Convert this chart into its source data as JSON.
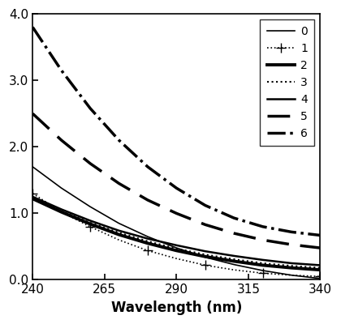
{
  "x": [
    240,
    250,
    260,
    270,
    280,
    290,
    300,
    310,
    320,
    330,
    340
  ],
  "curves": {
    "0": {
      "y": [
        1.7,
        1.38,
        1.1,
        0.85,
        0.65,
        0.48,
        0.34,
        0.23,
        0.14,
        0.07,
        0.02
      ],
      "lw": 1.2,
      "ls": "-",
      "marker": null,
      "label": "0"
    },
    "1": {
      "y": [
        1.3,
        1.02,
        0.8,
        0.6,
        0.44,
        0.32,
        0.22,
        0.15,
        0.1,
        0.07,
        0.05
      ],
      "lw": 1.2,
      "ls": ":",
      "marker": "+",
      "markersize": 8,
      "markevery": 2,
      "label": "1"
    },
    "2": {
      "y": [
        1.22,
        1.02,
        0.84,
        0.68,
        0.55,
        0.44,
        0.35,
        0.28,
        0.22,
        0.18,
        0.15
      ],
      "lw": 2.8,
      "ls": "-",
      "marker": null,
      "label": "2"
    },
    "3": {
      "y": [
        1.23,
        1.03,
        0.86,
        0.71,
        0.58,
        0.47,
        0.38,
        0.31,
        0.25,
        0.21,
        0.18
      ],
      "lw": 1.5,
      "ls": ":",
      "marker": null,
      "label": "3"
    },
    "4": {
      "y": [
        1.25,
        1.06,
        0.89,
        0.74,
        0.62,
        0.52,
        0.43,
        0.36,
        0.3,
        0.25,
        0.22
      ],
      "lw": 1.8,
      "ls": "-",
      "marker": null,
      "label": "4"
    },
    "5": {
      "y": [
        2.5,
        2.1,
        1.75,
        1.45,
        1.2,
        1.0,
        0.83,
        0.7,
        0.6,
        0.53,
        0.48
      ],
      "lw": 2.5,
      "ls": "--",
      "dashes": [
        8,
        4
      ],
      "marker": null,
      "label": "5"
    },
    "6": {
      "y": [
        3.8,
        3.15,
        2.58,
        2.1,
        1.7,
        1.38,
        1.12,
        0.93,
        0.8,
        0.72,
        0.67
      ],
      "lw": 2.5,
      "ls": "-.",
      "marker": null,
      "label": "6"
    }
  },
  "curve_order": [
    "0",
    "1",
    "2",
    "3",
    "4",
    "5",
    "6"
  ],
  "xlim": [
    240,
    340
  ],
  "ylim": [
    0.0,
    4.0
  ],
  "xticks": [
    240,
    265,
    290,
    315,
    340
  ],
  "yticks": [
    0.0,
    1.0,
    2.0,
    3.0,
    4.0
  ],
  "xlabel": "Wavelength (nm)",
  "background_color": "#ffffff",
  "legend_loc": "upper right",
  "legend_fontsize": 10
}
